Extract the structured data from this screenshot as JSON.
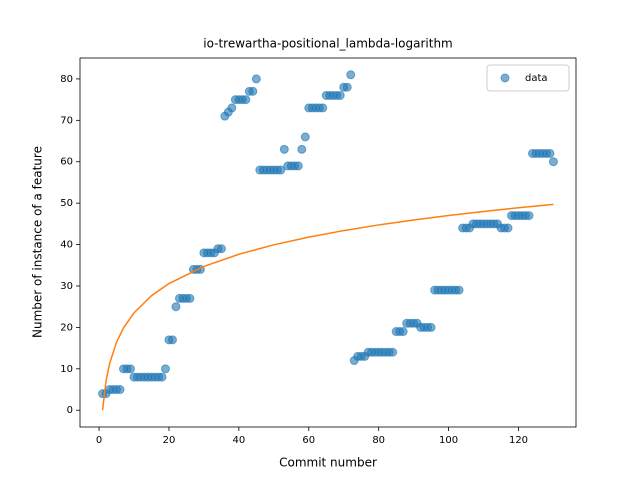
{
  "chart_data": {
    "type": "scatter",
    "title": "io-trewartha-positional_lambda-logarithm",
    "xlabel": "Commit number",
    "ylabel": "Number of instance of a feature",
    "xlim": [
      -5.45,
      136.45
    ],
    "ylim": [
      -4.05,
      85.05
    ],
    "xticks": [
      0,
      20,
      40,
      60,
      80,
      100,
      120
    ],
    "yticks": [
      0,
      10,
      20,
      30,
      40,
      50,
      60,
      70,
      80
    ],
    "legend": "upper right",
    "series": [
      {
        "name": "data",
        "type": "scatter",
        "color": "#1f77b4",
        "x": [
          1,
          2,
          3,
          4,
          5,
          6,
          7,
          8,
          9,
          10,
          11,
          12,
          13,
          14,
          15,
          16,
          17,
          18,
          19,
          20,
          21,
          22,
          23,
          24,
          25,
          26,
          27,
          28,
          29,
          30,
          31,
          32,
          33,
          34,
          35,
          36,
          37,
          38,
          39,
          40,
          41,
          42,
          43,
          44,
          45,
          46,
          47,
          48,
          49,
          50,
          51,
          52,
          53,
          54,
          55,
          56,
          57,
          58,
          59,
          60,
          61,
          62,
          63,
          64,
          65,
          66,
          67,
          68,
          69,
          70,
          71,
          72,
          73,
          74,
          75,
          76,
          77,
          78,
          79,
          80,
          81,
          82,
          83,
          84,
          85,
          86,
          87,
          88,
          89,
          90,
          91,
          92,
          93,
          94,
          95,
          96,
          97,
          98,
          99,
          100,
          101,
          102,
          103,
          104,
          105,
          106,
          107,
          108,
          109,
          110,
          111,
          112,
          113,
          114,
          115,
          116,
          117,
          118,
          119,
          120,
          121,
          122,
          123,
          124,
          125,
          126,
          127,
          128,
          129,
          130
        ],
        "values": [
          4,
          4,
          5,
          5,
          5,
          5,
          10,
          10,
          10,
          8,
          8,
          8,
          8,
          8,
          8,
          8,
          8,
          8,
          10,
          17,
          17,
          25,
          27,
          27,
          27,
          27,
          34,
          34,
          34,
          38,
          38,
          38,
          38,
          39,
          39,
          71,
          72,
          73,
          75,
          75,
          75,
          75,
          77,
          77,
          80,
          58,
          58,
          58,
          58,
          58,
          58,
          58,
          63,
          59,
          59,
          59,
          59,
          63,
          66,
          73,
          73,
          73,
          73,
          73,
          76,
          76,
          76,
          76,
          76,
          78,
          78,
          81,
          12,
          13,
          13,
          13,
          14,
          14,
          14,
          14,
          14,
          14,
          14,
          14,
          19,
          19,
          19,
          21,
          21,
          21,
          21,
          20,
          20,
          20,
          20,
          29,
          29,
          29,
          29,
          29,
          29,
          29,
          29,
          44,
          44,
          44,
          45,
          45,
          45,
          45,
          45,
          45,
          45,
          45,
          44,
          44,
          44,
          47,
          47,
          47,
          47,
          47,
          47,
          62,
          62,
          62,
          62,
          62,
          62,
          60
        ]
      },
      {
        "type": "line",
        "color": "#ff7f0e",
        "x": [
          1,
          2,
          3,
          5,
          7,
          10,
          15,
          20,
          30,
          40,
          50,
          60,
          70,
          80,
          90,
          100,
          110,
          120,
          130
        ],
        "values": [
          0,
          7.08,
          11.22,
          16.43,
          19.87,
          23.51,
          27.65,
          30.59,
          34.73,
          37.66,
          39.94,
          41.8,
          43.38,
          44.74,
          45.94,
          47.02,
          47.99,
          48.88,
          49.7
        ]
      }
    ]
  }
}
